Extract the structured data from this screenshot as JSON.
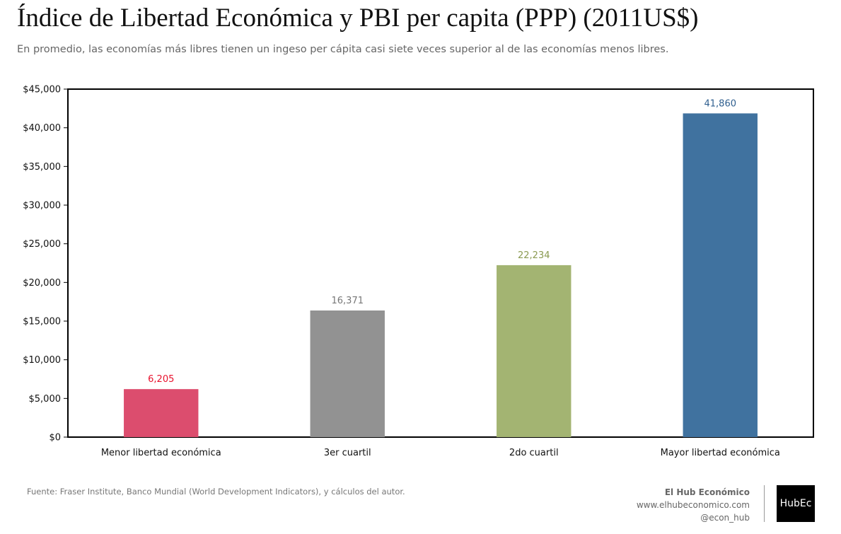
{
  "title": "Índice de Libertad Económica y PBI per capita (PPP) (2011US$)",
  "subtitle": "En promedio, las economías más libres tienen un ingeso per cápita casi siete veces superior al de las economías menos libres.",
  "source": "Fuente: Fraser Institute, Banco Mundial (World Development Indicators), y cálculos del autor.",
  "brand": {
    "name": "El Hub Económico",
    "website": "www.elhubeconomico.com",
    "handle": "@econ_hub",
    "logo_text": "HubEc"
  },
  "chart_data": {
    "type": "bar",
    "title": "",
    "xlabel": "",
    "ylabel": "",
    "categories": [
      "Menor libertad económica",
      "3er cuartil",
      "2do cuartil",
      "Mayor libertad económica"
    ],
    "values": [
      6205,
      16371,
      22234,
      41860
    ],
    "data_labels": [
      "6,205",
      "16,371",
      "22,234",
      "41,860"
    ],
    "bar_colors": [
      "#dc4d6e",
      "#929292",
      "#a3b472",
      "#40729f"
    ],
    "label_colors": [
      "#e8112d",
      "#777777",
      "#8a9a50",
      "#2f5f8f"
    ],
    "ylim": [
      0,
      45000
    ],
    "yticks": [
      0,
      5000,
      10000,
      15000,
      20000,
      25000,
      30000,
      35000,
      40000,
      45000
    ],
    "ytick_labels": [
      "$0",
      "$5,000",
      "$10,000",
      "$15,000",
      "$20,000",
      "$25,000",
      "$30,000",
      "$35,000",
      "$40,000",
      "$45,000"
    ],
    "grid": false,
    "legend": "none"
  }
}
